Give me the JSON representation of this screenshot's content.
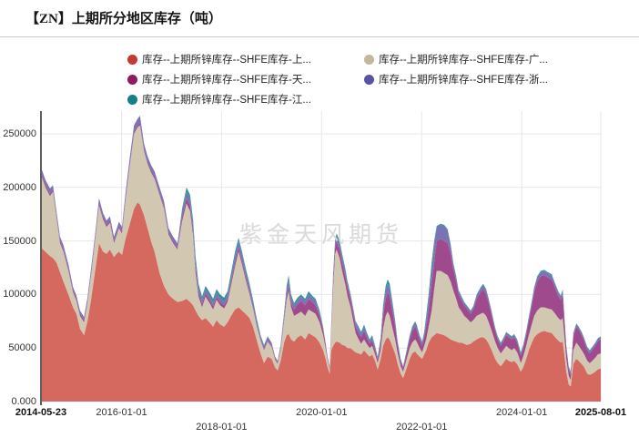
{
  "header": {
    "title": "【ZN】上期所分地区库存（吨）"
  },
  "watermark": "紫金天风期货",
  "chart_data": {
    "type": "area",
    "stacked": true,
    "title": "【ZN】上期所分地区库存（吨）",
    "unit": "吨",
    "legend_position": "top",
    "grid": true,
    "x_range": [
      2014.39,
      2025.58
    ],
    "y_range": [
      0,
      270000
    ],
    "value_scale": 1000,
    "y_ticks": [
      {
        "label": "0.000",
        "value": 0
      },
      {
        "label": "50000",
        "value": 50000
      },
      {
        "label": "100000",
        "value": 100000
      },
      {
        "label": "150000",
        "value": 150000
      },
      {
        "label": "200000",
        "value": 200000
      },
      {
        "label": "250000",
        "value": 250000
      }
    ],
    "x_ticks": [
      {
        "label": "2014-05-23",
        "t": 2014.39,
        "bold": true,
        "row": 1
      },
      {
        "label": "2016-01-01",
        "t": 2016.0,
        "bold": false,
        "row": 1
      },
      {
        "label": "2018-01-01",
        "t": 2018.0,
        "bold": false,
        "row": 2
      },
      {
        "label": "2020-01-01",
        "t": 2020.0,
        "bold": false,
        "row": 1
      },
      {
        "label": "2022-01-01",
        "t": 2022.0,
        "bold": false,
        "row": 2
      },
      {
        "label": "2024-01-01",
        "t": 2024.0,
        "bold": false,
        "row": 1
      },
      {
        "label": "2025-08-01",
        "t": 2025.58,
        "bold": true,
        "row": 1
      }
    ],
    "x_years": [
      2014.39,
      2014.48,
      2014.57,
      2014.63,
      2014.7,
      2014.77,
      2014.84,
      2014.94,
      2015.03,
      2015.1,
      2015.17,
      2015.25,
      2015.32,
      2015.39,
      2015.46,
      2015.55,
      2015.63,
      2015.7,
      2015.77,
      2015.85,
      2015.9,
      2015.95,
      2016.01,
      2016.08,
      2016.16,
      2016.25,
      2016.32,
      2016.37,
      2016.45,
      2016.52,
      2016.59,
      2016.66,
      2016.76,
      2016.85,
      2016.94,
      2017.03,
      2017.12,
      2017.21,
      2017.3,
      2017.37,
      2017.43,
      2017.48,
      2017.54,
      2017.61,
      2017.68,
      2017.76,
      2017.83,
      2017.9,
      2017.97,
      2018.05,
      2018.12,
      2018.19,
      2018.27,
      2018.34,
      2018.41,
      2018.48,
      2018.56,
      2018.63,
      2018.7,
      2018.78,
      2018.85,
      2018.92,
      2019.0,
      2019.07,
      2019.12,
      2019.18,
      2019.25,
      2019.3,
      2019.34,
      2019.39,
      2019.45,
      2019.52,
      2019.59,
      2019.67,
      2019.74,
      2019.81,
      2019.88,
      2019.96,
      2020.03,
      2020.08,
      2020.12,
      2020.16,
      2020.19,
      2020.23,
      2020.27,
      2020.3,
      2020.36,
      2020.41,
      2020.47,
      2020.52,
      2020.58,
      2020.63,
      2020.68,
      2020.74,
      2020.79,
      2020.85,
      2020.9,
      2020.96,
      2021.01,
      2021.07,
      2021.12,
      2021.18,
      2021.23,
      2021.28,
      2021.32,
      2021.36,
      2021.41,
      2021.47,
      2021.52,
      2021.58,
      2021.63,
      2021.69,
      2021.76,
      2021.81,
      2021.87,
      2021.9,
      2021.96,
      2022.01,
      2022.05,
      2022.09,
      2022.14,
      2022.2,
      2022.25,
      2022.3,
      2022.38,
      2022.45,
      2022.52,
      2022.58,
      2022.63,
      2022.69,
      2022.74,
      2022.8,
      2022.85,
      2022.9,
      2022.98,
      2023.03,
      2023.1,
      2023.18,
      2023.23,
      2023.29,
      2023.34,
      2023.4,
      2023.47,
      2023.52,
      2023.58,
      2023.63,
      2023.69,
      2023.74,
      2023.8,
      2023.85,
      2023.91,
      2023.94,
      2023.98,
      2024.03,
      2024.09,
      2024.14,
      2024.2,
      2024.25,
      2024.31,
      2024.38,
      2024.45,
      2024.52,
      2024.6,
      2024.67,
      2024.73,
      2024.78,
      2024.82,
      2024.85,
      2024.89,
      2024.94,
      2024.98,
      2025.03,
      2025.09,
      2025.14,
      2025.2,
      2025.25,
      2025.31,
      2025.36,
      2025.41,
      2025.47,
      2025.52,
      2025.58
    ],
    "series": [
      {
        "label": "库存--上期所锌库存--SHFE库存-上...",
        "color": "#c23a31",
        "area_color": "#d5685f",
        "values": [
          144,
          140,
          136,
          134,
          130,
          121,
          112,
          100,
          88,
          82,
          68,
          62,
          75,
          95,
          118,
          148,
          140,
          138,
          142,
          135,
          138,
          140,
          137,
          152,
          165,
          180,
          186,
          184,
          174,
          162,
          150,
          140,
          120,
          108,
          100,
          96,
          93,
          94,
          96,
          93,
          90,
          85,
          80,
          76,
          78,
          74,
          70,
          76,
          72,
          70,
          74,
          80,
          86,
          88,
          85,
          82,
          78,
          70,
          58,
          45,
          36,
          42,
          40,
          32,
          29,
          38,
          55,
          62,
          63,
          58,
          56,
          60,
          62,
          58,
          64,
          62,
          60,
          55,
          48,
          40,
          32,
          26,
          48,
          52,
          55,
          56,
          55,
          53,
          52,
          50,
          50,
          48,
          46,
          45,
          44,
          48,
          45,
          42,
          44,
          38,
          30,
          40,
          52,
          58,
          60,
          58,
          52,
          45,
          35,
          26,
          22,
          30,
          40,
          45,
          47,
          45,
          42,
          40,
          44,
          48,
          55,
          60,
          62,
          64,
          63,
          62,
          60,
          58,
          57,
          56,
          55,
          55,
          54,
          53,
          54,
          56,
          58,
          60,
          60,
          58,
          54,
          48,
          40,
          36,
          33,
          36,
          40,
          38,
          37,
          38,
          35,
          32,
          28,
          32,
          40,
          48,
          55,
          60,
          63,
          65,
          66,
          65,
          64,
          60,
          57,
          55,
          56,
          45,
          28,
          16,
          14,
          35,
          40,
          38,
          35,
          32,
          26,
          25,
          26,
          28,
          30,
          31
        ]
      },
      {
        "label": "库存--上期所锌库存--SHFE库存-广...",
        "color": "#c3b79e",
        "area_color": "#d2c8b2",
        "values": [
          68,
          60,
          56,
          62,
          42,
          27,
          28,
          22,
          14,
          12,
          12,
          12,
          17,
          23,
          27,
          35,
          30,
          25,
          25,
          13,
          17,
          22,
          20,
          36,
          53,
          70,
          70,
          74,
          60,
          60,
          64,
          68,
          73,
          72,
          56,
          52,
          49,
          74,
          89,
          85,
          65,
          35,
          18,
          12,
          20,
          18,
          16,
          19,
          18,
          17,
          19,
          28,
          40,
          52,
          43,
          32,
          22,
          17,
          13,
          12,
          12,
          14,
          11,
          7,
          6,
          10,
          20,
          33,
          40,
          30,
          24,
          22,
          22,
          22,
          22,
          22,
          22,
          19,
          14,
          10,
          7,
          4,
          14,
          53,
          83,
          86,
          79,
          69,
          58,
          48,
          38,
          28,
          18,
          13,
          10,
          10,
          9,
          8,
          8,
          6,
          6,
          8,
          16,
          22,
          24,
          22,
          18,
          13,
          10,
          7,
          6,
          8,
          10,
          10,
          11,
          11,
          8,
          6,
          8,
          10,
          15,
          25,
          43,
          58,
          59,
          58,
          58,
          54,
          47,
          40,
          33,
          29,
          26,
          25,
          20,
          20,
          22,
          22,
          23,
          22,
          20,
          18,
          16,
          14,
          12,
          12,
          12,
          12,
          11,
          12,
          11,
          10,
          8,
          10,
          12,
          14,
          17,
          20,
          22,
          23,
          22,
          22,
          22,
          22,
          21,
          21,
          22,
          17,
          12,
          8,
          6,
          13,
          15,
          14,
          13,
          12,
          12,
          11,
          12,
          13,
          14,
          14
        ]
      },
      {
        "label": "库存--上期所锌库存--SHFE库存-天...",
        "color": "#8e1c60",
        "area_color": "#a04a8e",
        "values": [
          2,
          2,
          2,
          2,
          2,
          2,
          2,
          2,
          2,
          2,
          2,
          2,
          2,
          2,
          2,
          2,
          2,
          2,
          2,
          2,
          2,
          2,
          2,
          2,
          2,
          2,
          2,
          2,
          2,
          2,
          2,
          2,
          2,
          2,
          2,
          2,
          2,
          4,
          5,
          5,
          5,
          5,
          4,
          3,
          3,
          3,
          3,
          3,
          3,
          3,
          3,
          3,
          4,
          4,
          3,
          3,
          3,
          2,
          2,
          1,
          1,
          1,
          1,
          1,
          1,
          1,
          2,
          4,
          5,
          4,
          6,
          9,
          10,
          10,
          10,
          9,
          8,
          6,
          5,
          3,
          2,
          2,
          4,
          7,
          7,
          7,
          8,
          8,
          8,
          8,
          7,
          7,
          6,
          6,
          6,
          8,
          6,
          4,
          5,
          4,
          3,
          6,
          12,
          16,
          18,
          18,
          16,
          12,
          7,
          4,
          3,
          5,
          8,
          11,
          12,
          11,
          8,
          6,
          8,
          12,
          16,
          25,
          25,
          28,
          30,
          30,
          30,
          26,
          20,
          16,
          12,
          10,
          10,
          9,
          8,
          10,
          16,
          20,
          22,
          20,
          18,
          14,
          10,
          8,
          7,
          8,
          10,
          10,
          10,
          10,
          9,
          8,
          7,
          8,
          10,
          13,
          18,
          22,
          27,
          29,
          30,
          29,
          28,
          24,
          21,
          19,
          22,
          16,
          10,
          6,
          5,
          12,
          15,
          15,
          14,
          12,
          10,
          9,
          10,
          11,
          12,
          13
        ]
      },
      {
        "label": "库存--上期所锌库存--SHFE库存-浙...",
        "color": "#5a52a3",
        "area_color": "#7b74b4",
        "values": [
          5,
          5,
          5,
          4,
          4,
          4,
          4,
          4,
          3,
          3,
          3,
          3,
          3,
          4,
          4,
          5,
          4,
          4,
          4,
          4,
          4,
          4,
          4,
          5,
          6,
          6,
          6,
          7,
          5,
          5,
          5,
          5,
          5,
          5,
          4,
          4,
          4,
          6,
          6,
          6,
          5,
          5,
          4,
          4,
          4,
          4,
          3,
          4,
          4,
          3,
          4,
          5,
          6,
          6,
          6,
          5,
          5,
          4,
          3,
          3,
          3,
          3,
          3,
          2,
          2,
          3,
          4,
          6,
          6,
          5,
          4,
          4,
          4,
          4,
          4,
          4,
          4,
          3,
          2,
          2,
          1,
          1,
          3,
          6,
          5,
          6,
          6,
          6,
          5,
          4,
          4,
          4,
          4,
          4,
          3,
          4,
          4,
          3,
          3,
          3,
          2,
          4,
          6,
          8,
          8,
          8,
          6,
          4,
          3,
          2,
          2,
          2,
          3,
          3,
          4,
          4,
          3,
          3,
          3,
          6,
          9,
          14,
          15,
          13,
          13,
          14,
          12,
          8,
          5,
          4,
          3,
          3,
          2,
          2,
          2,
          2,
          3,
          4,
          4,
          4,
          3,
          3,
          2,
          2,
          2,
          2,
          2,
          2,
          2,
          2,
          2,
          2,
          2,
          2,
          3,
          3,
          3,
          4,
          4,
          4,
          4,
          4,
          4,
          3,
          3,
          3,
          4,
          3,
          2,
          2,
          2,
          3,
          2,
          2,
          2,
          2,
          2,
          2,
          2,
          2,
          2,
          2
        ]
      },
      {
        "label": "库存--上期所锌库存--SHFE库存-江...",
        "color": "#15808a",
        "area_color": "#2e9297",
        "values": [
          0,
          0,
          0,
          0,
          0,
          0,
          0,
          0,
          0,
          0,
          0,
          0,
          0,
          0,
          0,
          0,
          0,
          0,
          0,
          0,
          0,
          0,
          0,
          0,
          0,
          0,
          0,
          0,
          0,
          0,
          0,
          0,
          0,
          0,
          0,
          0,
          0,
          2,
          4,
          4,
          5,
          6,
          4,
          3,
          3,
          3,
          4,
          3,
          3,
          4,
          3,
          4,
          4,
          3,
          3,
          3,
          2,
          2,
          2,
          1,
          1,
          1,
          0,
          0,
          0,
          1,
          2,
          3,
          4,
          3,
          2,
          2,
          2,
          2,
          3,
          2,
          2,
          2,
          1,
          0,
          0,
          0,
          1,
          2,
          2,
          2,
          2,
          2,
          2,
          2,
          1,
          1,
          1,
          2,
          2,
          2,
          1,
          1,
          2,
          1,
          1,
          2,
          4,
          4,
          4,
          4,
          3,
          2,
          1,
          1,
          0,
          1,
          1,
          1,
          1,
          1,
          1,
          1,
          2,
          4,
          5,
          6,
          5,
          1,
          1,
          1,
          1,
          1,
          1,
          1,
          1,
          1,
          1,
          1,
          1,
          1,
          1,
          1,
          1,
          1,
          1,
          1,
          1,
          1,
          1,
          1,
          1,
          1,
          1,
          1,
          1,
          1,
          1,
          1,
          1,
          1,
          1,
          1,
          1,
          1,
          1,
          1,
          1,
          1,
          1,
          1,
          1,
          1,
          1,
          1,
          1,
          1,
          1,
          1,
          1,
          1,
          1,
          1,
          1,
          1,
          1,
          1
        ]
      }
    ]
  }
}
